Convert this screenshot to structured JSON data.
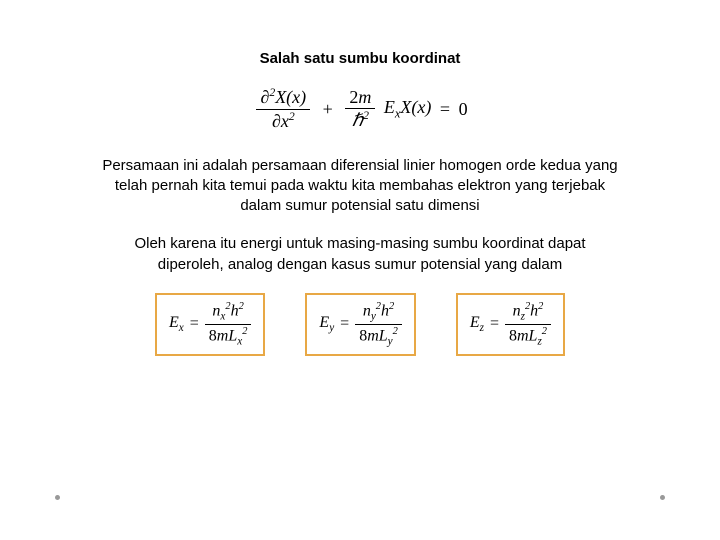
{
  "title": "Salah satu sumbu koordinat",
  "paragraph1": "Persamaan ini adalah persamaan diferensial linier homogen orde kedua yang telah pernah kita temui pada waktu kita membahas elektron yang terjebak dalam sumur potensial satu dimensi",
  "paragraph2": "Oleh karena itu energi untuk masing-masing sumbu koordinat dapat diperoleh, analog dengan kasus sumur potensial yang dalam",
  "box_border_color": "#e8a845",
  "eq_x": {
    "lhs_sub": "x",
    "n_sub": "x",
    "L_sub": "x"
  },
  "eq_y": {
    "lhs_sub": "y",
    "n_sub": "y",
    "L_sub": "y"
  },
  "eq_z": {
    "lhs_sub": "z",
    "n_sub": "z",
    "L_sub": "z"
  },
  "fontsize_title": 15,
  "fontsize_body": 15,
  "text_color": "#000000",
  "background_color": "#ffffff"
}
